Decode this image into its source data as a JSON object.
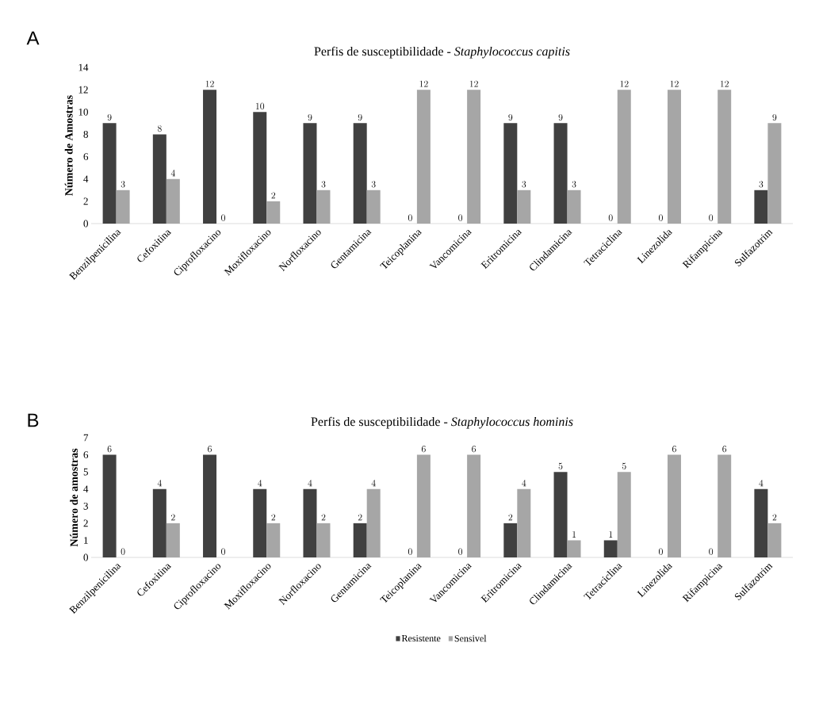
{
  "chart_data": [
    {
      "type": "bar",
      "title": "Perfis de susceptibilidade  - *Staphylococcus capitis*",
      "ylabel": "Número de Amostras",
      "annotations": [
        "A"
      ],
      "categories": [
        "Benzilpenicilina",
        "Cefoxitina",
        "Ciprofloxacino",
        "Moxifloxacino",
        "Norfloxacino",
        "Gentamicina",
        "Teicoplanina",
        "Vancomicina",
        "Eritromicina",
        "Clindamicina",
        "Tetraciclina",
        "Linezolida",
        "Rifampicina",
        "Sulfazotrim"
      ],
      "series": [
        {
          "color": "#404040",
          "values": [
            9,
            8,
            12,
            10,
            9,
            9,
            0,
            0,
            9,
            9,
            0,
            0,
            0,
            3
          ]
        },
        {
          "color": "#a6a6a6",
          "values": [
            3,
            4,
            0,
            2,
            3,
            3,
            12,
            12,
            3,
            3,
            12,
            12,
            12,
            9
          ]
        }
      ],
      "ylim": [
        0,
        14
      ],
      "yticks": [
        0,
        2,
        4,
        6,
        8,
        10,
        12,
        14
      ],
      "data_labels": true
    },
    {
      "type": "bar",
      "title": "Perfis de susceptibilidade  - *Staphylococcus hominis*",
      "ylabel": "Número de amostras",
      "annotations": [
        "B"
      ],
      "categories": [
        "Benzilpenicilina",
        "Cefoxitina",
        "Ciprofloxacino",
        "Moxifloxacino",
        "Norfloxacino",
        "Gentamicina",
        "Teicoplanina",
        "Vancomicina",
        "Eritromicina",
        "Clindamicina",
        "Tetraciclina",
        "Linezolida",
        "Rifampicina",
        "Sulfazotrim"
      ],
      "series": [
        {
          "name": "Resistente",
          "color": "#404040",
          "values": [
            6,
            4,
            6,
            4,
            4,
            2,
            0,
            0,
            2,
            5,
            1,
            0,
            0,
            4
          ]
        },
        {
          "name": "Sensivel",
          "color": "#a6a6a6",
          "values": [
            0,
            2,
            0,
            2,
            2,
            4,
            6,
            6,
            4,
            1,
            5,
            6,
            6,
            2
          ]
        }
      ],
      "ylim": [
        0,
        7
      ],
      "yticks": [
        0,
        1,
        2,
        3,
        4,
        5,
        6,
        7
      ],
      "data_labels": true,
      "legend": "bottom"
    }
  ]
}
